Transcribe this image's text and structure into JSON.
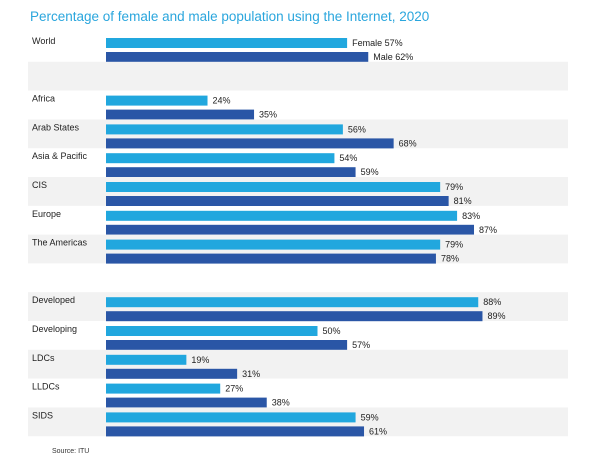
{
  "title": "Percentage of female and male population using the Internet, 2020",
  "source": "Source: ITU",
  "chart_data": {
    "type": "bar",
    "orientation": "horizontal",
    "title": "Percentage of female and male population using the Internet, 2020",
    "unit": "%",
    "xlim": [
      0,
      100
    ],
    "grid": false,
    "series_order": [
      "Female",
      "Male"
    ],
    "colors": {
      "Female": "#21a7de",
      "Male": "#2a56a6",
      "stripe": "#f2f2f2"
    },
    "groups": [
      {
        "name": "World",
        "female": 57,
        "male": 62,
        "female_label": "Female 57%",
        "male_label": "Male 62%"
      },
      {
        "name": "",
        "female": null,
        "male": null
      },
      {
        "name": "Africa",
        "female": 24,
        "male": 35,
        "female_label": "24%",
        "male_label": "35%"
      },
      {
        "name": "Arab States",
        "female": 56,
        "male": 68,
        "female_label": "56%",
        "male_label": "68%"
      },
      {
        "name": "Asia & Pacific",
        "female": 54,
        "male": 59,
        "female_label": "54%",
        "male_label": "59%"
      },
      {
        "name": "CIS",
        "female": 79,
        "male": 81,
        "female_label": "79%",
        "male_label": "81%"
      },
      {
        "name": "Europe",
        "female": 83,
        "male": 87,
        "female_label": "83%",
        "male_label": "87%"
      },
      {
        "name": "The Americas",
        "female": 79,
        "male": 78,
        "female_label": "79%",
        "male_label": "78%"
      },
      {
        "name": "",
        "female": null,
        "male": null
      },
      {
        "name": "Developed",
        "female": 88,
        "male": 89,
        "female_label": "88%",
        "male_label": "89%"
      },
      {
        "name": "Developing",
        "female": 50,
        "male": 57,
        "female_label": "50%",
        "male_label": "57%"
      },
      {
        "name": "LDCs",
        "female": 19,
        "male": 31,
        "female_label": "19%",
        "male_label": "31%"
      },
      {
        "name": "LLDCs",
        "female": 27,
        "male": 38,
        "female_label": "27%",
        "male_label": "38%"
      },
      {
        "name": "SIDS",
        "female": 59,
        "male": 61,
        "female_label": "59%",
        "male_label": "61%"
      }
    ]
  }
}
